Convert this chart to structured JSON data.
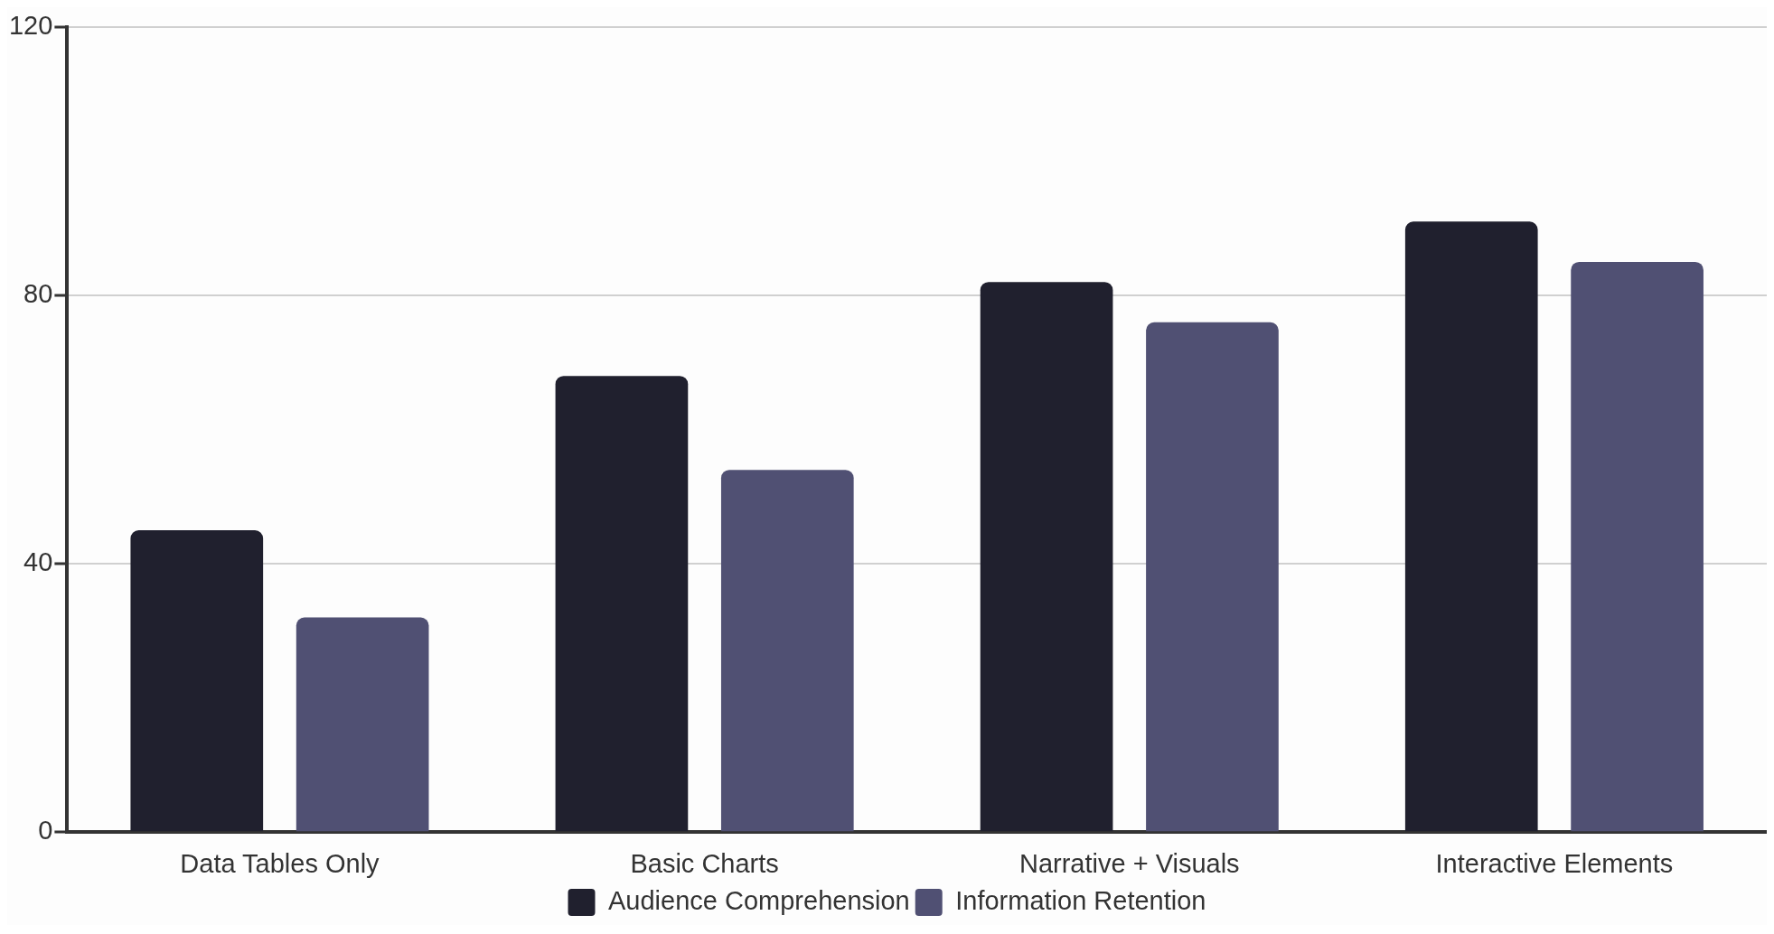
{
  "chart_data": {
    "type": "bar",
    "categories": [
      "Data Tables Only",
      "Basic Charts",
      "Narrative + Visuals",
      "Interactive Elements"
    ],
    "series": [
      {
        "name": "Audience Comprehension",
        "color": "#20202e",
        "values": [
          45,
          68,
          82,
          91
        ]
      },
      {
        "name": "Information Retention",
        "color": "#505073",
        "values": [
          32,
          54,
          76,
          85
        ]
      }
    ],
    "ylim": [
      0,
      120
    ],
    "yticks": [
      0,
      40,
      80,
      120
    ],
    "grid": "y",
    "legend": "bottom"
  }
}
